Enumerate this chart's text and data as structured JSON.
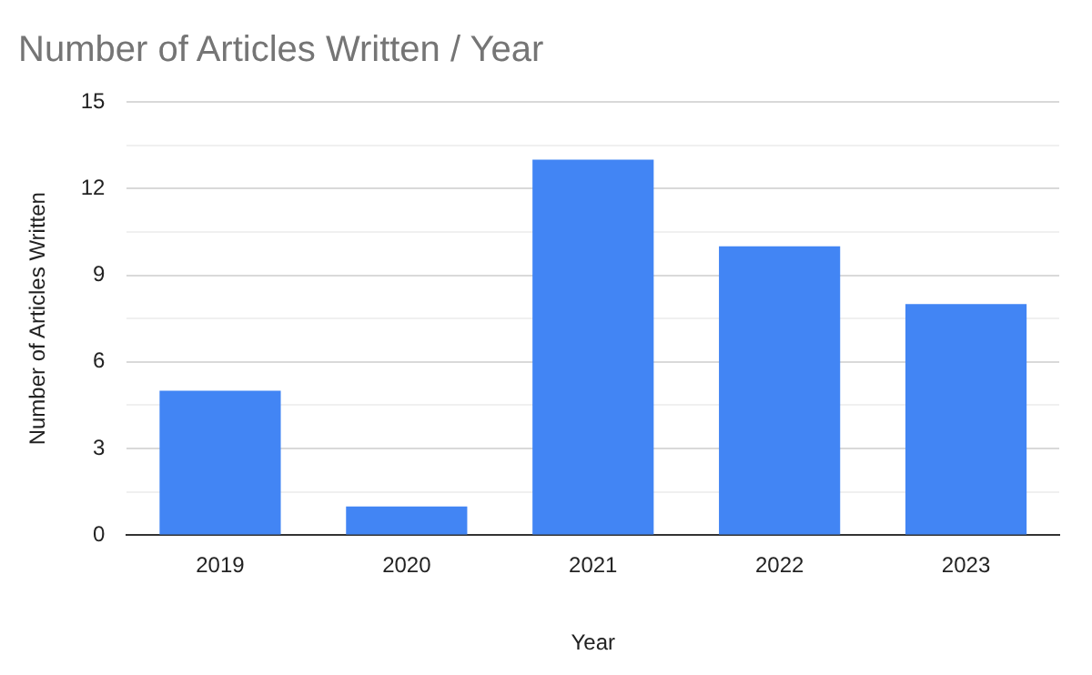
{
  "chart_data": {
    "type": "bar",
    "title": "Number of Articles Written / Year",
    "xlabel": "Year",
    "ylabel": "Number of Articles Written",
    "categories": [
      "2019",
      "2020",
      "2021",
      "2022",
      "2023"
    ],
    "values": [
      5,
      1,
      13,
      10,
      8
    ],
    "color": "#4285f4",
    "ylim": [
      0,
      15
    ],
    "yticks": [
      0,
      {
        "value": 1.5,
        "label": null
      },
      3,
      {
        "value": 4.5,
        "label": null
      },
      6,
      {
        "value": 7.5,
        "label": null
      },
      9,
      {
        "value": 10.5,
        "label": null
      },
      12,
      {
        "value": 13.5,
        "label": null
      },
      15
    ],
    "grid": "y",
    "legend": false
  }
}
